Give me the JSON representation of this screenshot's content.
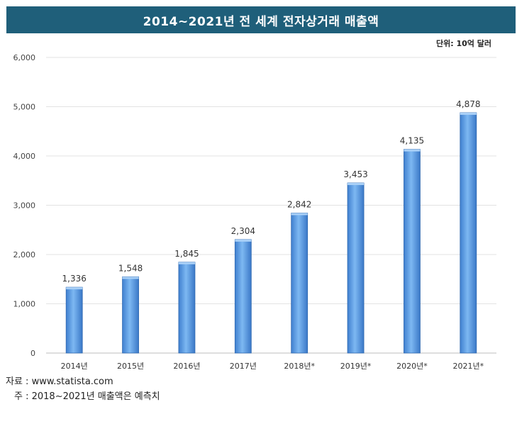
{
  "title": "2014~2021년 전 세계 전자상거래 매출액",
  "unit_label": "단위: 10억 달러",
  "source": "자료 : www.statista.com",
  "note": "주 : 2018~2021년 매출액은 예측치",
  "chart_data": {
    "type": "bar",
    "title": "2014~2021년 전 세계 전자상거래 매출액",
    "categories": [
      "2014년",
      "2015년",
      "2016년",
      "2017년",
      "2018년*",
      "2019년*",
      "2020년*",
      "2021년*"
    ],
    "values": [
      1336,
      1548,
      1845,
      2304,
      2842,
      3453,
      4135,
      4878
    ],
    "value_labels": [
      "1,336",
      "1,548",
      "1,845",
      "2,304",
      "2,842",
      "3,453",
      "4,135",
      "4,878"
    ],
    "y_ticks": [
      "0",
      "1,000",
      "2,000",
      "3,000",
      "4,000",
      "5,000",
      "6,000"
    ],
    "ylim": [
      0,
      6000
    ],
    "grid": true,
    "bar_color": "#5b9ee6",
    "xlabel": "",
    "ylabel": ""
  }
}
